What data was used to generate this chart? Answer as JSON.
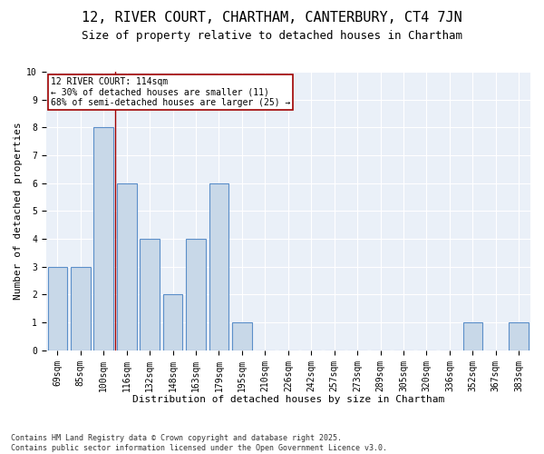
{
  "title": "12, RIVER COURT, CHARTHAM, CANTERBURY, CT4 7JN",
  "subtitle": "Size of property relative to detached houses in Chartham",
  "xlabel": "Distribution of detached houses by size in Chartham",
  "ylabel": "Number of detached properties",
  "categories": [
    "69sqm",
    "85sqm",
    "100sqm",
    "116sqm",
    "132sqm",
    "148sqm",
    "163sqm",
    "179sqm",
    "195sqm",
    "210sqm",
    "226sqm",
    "242sqm",
    "257sqm",
    "273sqm",
    "289sqm",
    "305sqm",
    "320sqm",
    "336sqm",
    "352sqm",
    "367sqm",
    "383sqm"
  ],
  "values": [
    3,
    3,
    8,
    6,
    4,
    2,
    4,
    6,
    1,
    0,
    0,
    0,
    0,
    0,
    0,
    0,
    0,
    0,
    1,
    0,
    1
  ],
  "bar_color": "#c8d8e8",
  "bar_edge_color": "#5b8fc9",
  "bar_edge_width": 0.8,
  "reference_line_color": "#a00000",
  "annotation_text": "12 RIVER COURT: 114sqm\n← 30% of detached houses are smaller (11)\n68% of semi-detached houses are larger (25) →",
  "annotation_box_color": "#ffffff",
  "annotation_box_edge_color": "#a00000",
  "ylim": [
    0,
    10
  ],
  "yticks": [
    0,
    1,
    2,
    3,
    4,
    5,
    6,
    7,
    8,
    9,
    10
  ],
  "background_color": "#eaf0f8",
  "footer_text": "Contains HM Land Registry data © Crown copyright and database right 2025.\nContains public sector information licensed under the Open Government Licence v3.0.",
  "title_fontsize": 11,
  "subtitle_fontsize": 9,
  "xlabel_fontsize": 8,
  "ylabel_fontsize": 8,
  "tick_fontsize": 7,
  "footer_fontsize": 6,
  "annotation_fontsize": 7
}
